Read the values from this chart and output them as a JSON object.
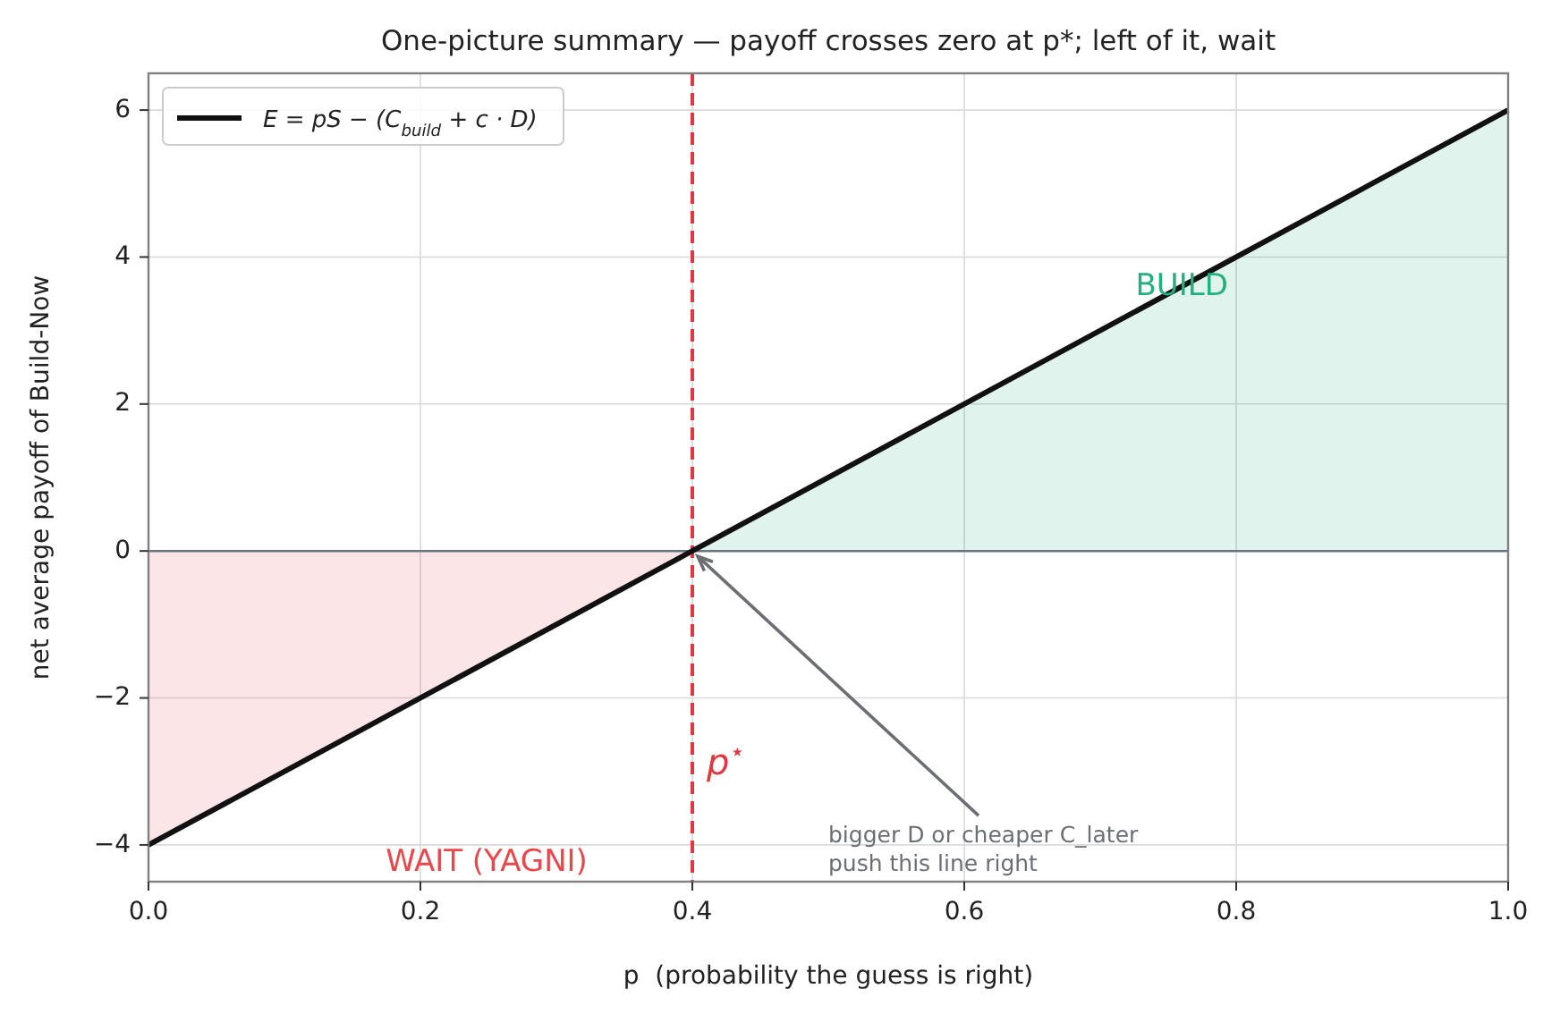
{
  "chart_data": {
    "type": "line",
    "title": "One-picture summary — payoff crosses zero at p*; left of it, wait",
    "xlabel": "p  (probability the guess is right)",
    "ylabel": "net average payoff of Build-Now",
    "xlim": [
      0,
      1
    ],
    "ylim": [
      -4.5,
      6.5
    ],
    "xticks": [
      {
        "value": 0,
        "label": "0.0"
      },
      {
        "value": 0.2,
        "label": "0.2"
      },
      {
        "value": 0.4,
        "label": "0.4"
      },
      {
        "value": 0.6,
        "label": "0.6"
      },
      {
        "value": 0.8,
        "label": "0.8"
      },
      {
        "value": 1,
        "label": "1.0"
      }
    ],
    "yticks": [
      -4,
      -2,
      0,
      2,
      4,
      6
    ],
    "series": [
      {
        "type": "area",
        "color": "#22b07d",
        "x": [
          0.4,
          1
        ],
        "values": [
          0,
          6
        ]
      },
      {
        "type": "area",
        "color": "#e8484b",
        "x": [
          0,
          0.4
        ],
        "values": [
          -4,
          0
        ]
      },
      {
        "name": "E = pS − (C$_{build}$ + c · D)",
        "color": "#111111",
        "x": [
          0,
          0.4,
          1
        ],
        "values": [
          -4,
          0,
          6
        ]
      }
    ],
    "ref_lines": [
      {
        "axis": "y",
        "value": 0,
        "label": null,
        "color": "#6b7280",
        "line_style": "solid"
      },
      {
        "axis": "x",
        "value": 0.4,
        "label": "p$^{⋆}$",
        "color": "#e0383e",
        "line_style": "dashed"
      }
    ],
    "annotations": [
      {
        "text": "BUILD",
        "x": 0.76,
        "y": 3.6
      },
      "WAIT (YAGNI)",
      {
        "text": "bigger D or cheaper C_later\npush this line right",
        "x": 0.4,
        "y": 0
      }
    ],
    "grid": true,
    "legend": "top left"
  }
}
